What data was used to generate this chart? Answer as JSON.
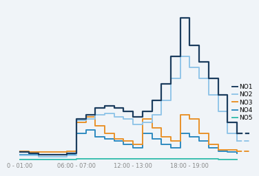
{
  "hours": [
    0,
    1,
    2,
    3,
    4,
    5,
    6,
    7,
    8,
    9,
    10,
    11,
    12,
    13,
    14,
    15,
    16,
    17,
    18,
    19,
    20,
    21,
    22,
    23
  ],
  "NO1": [
    0.8,
    0.7,
    0.6,
    0.6,
    0.6,
    0.7,
    3.8,
    4.2,
    4.8,
    5.0,
    4.8,
    4.5,
    4.0,
    4.5,
    5.5,
    7.0,
    9.5,
    13.0,
    10.5,
    9.0,
    7.5,
    6.0,
    3.5,
    2.5
  ],
  "NO2": [
    0.5,
    0.5,
    0.4,
    0.4,
    0.4,
    0.5,
    3.7,
    3.8,
    4.2,
    4.3,
    4.0,
    3.8,
    3.3,
    3.5,
    4.2,
    5.5,
    7.5,
    9.5,
    8.5,
    7.5,
    6.0,
    4.5,
    2.5,
    1.8
  ],
  "NO3": [
    0.9,
    0.8,
    0.8,
    0.8,
    0.8,
    0.9,
    3.5,
    4.0,
    3.2,
    2.5,
    2.0,
    1.8,
    1.5,
    3.8,
    3.0,
    2.2,
    1.8,
    4.2,
    3.8,
    2.5,
    1.5,
    1.0,
    1.0,
    0.9
  ],
  "NO4": [
    0.6,
    0.6,
    0.6,
    0.6,
    0.6,
    0.6,
    2.5,
    2.8,
    2.2,
    2.0,
    1.8,
    1.5,
    1.2,
    2.5,
    2.0,
    1.5,
    1.2,
    2.5,
    2.2,
    1.8,
    1.2,
    0.9,
    0.8,
    0.7
  ],
  "NO5": [
    0.15,
    0.15,
    0.15,
    0.15,
    0.15,
    0.15,
    0.18,
    0.18,
    0.18,
    0.18,
    0.18,
    0.18,
    0.18,
    0.18,
    0.18,
    0.18,
    0.18,
    0.18,
    0.18,
    0.18,
    0.18,
    0.15,
    0.15,
    0.15
  ],
  "colors": {
    "NO1": "#1c3d5e",
    "NO2": "#92c5e8",
    "NO3": "#e8922a",
    "NO4": "#2e8bc0",
    "NO5": "#3bbfb0"
  },
  "linewidths": {
    "NO1": 1.6,
    "NO2": 1.4,
    "NO3": 1.4,
    "NO4": 1.4,
    "NO5": 1.4
  },
  "xtick_positions": [
    0,
    6,
    12,
    18
  ],
  "xtick_labels": [
    "0 - 01:00",
    "06:00 - 07:00",
    "12:00 - 13:00",
    "18:00 - 19:00"
  ],
  "ylim": [
    0,
    14
  ],
  "xlim": [
    -0.3,
    24.5
  ],
  "background_color": "#f0f4f8",
  "grid_color": "#c8d8e8"
}
